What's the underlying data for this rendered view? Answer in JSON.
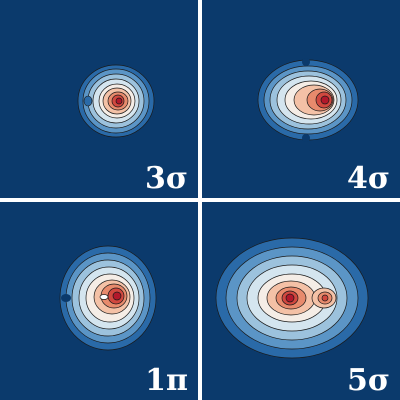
{
  "panels": [
    {
      "label": "3σ"
    },
    {
      "label": "4σ"
    },
    {
      "label": "1π"
    },
    {
      "label": "5σ"
    }
  ],
  "colors": {
    "background": "#0b3a6c",
    "separator": "#ffffff",
    "label": "#ffffff",
    "contour_line": "#1a1a1a",
    "scale": [
      "#0b3a6c",
      "#2a6aa8",
      "#5b95c6",
      "#9cc2dd",
      "#d4e5ef",
      "#f5ede6",
      "#f4c1a6",
      "#e88a6c",
      "#d1483f",
      "#b2182b"
    ]
  }
}
